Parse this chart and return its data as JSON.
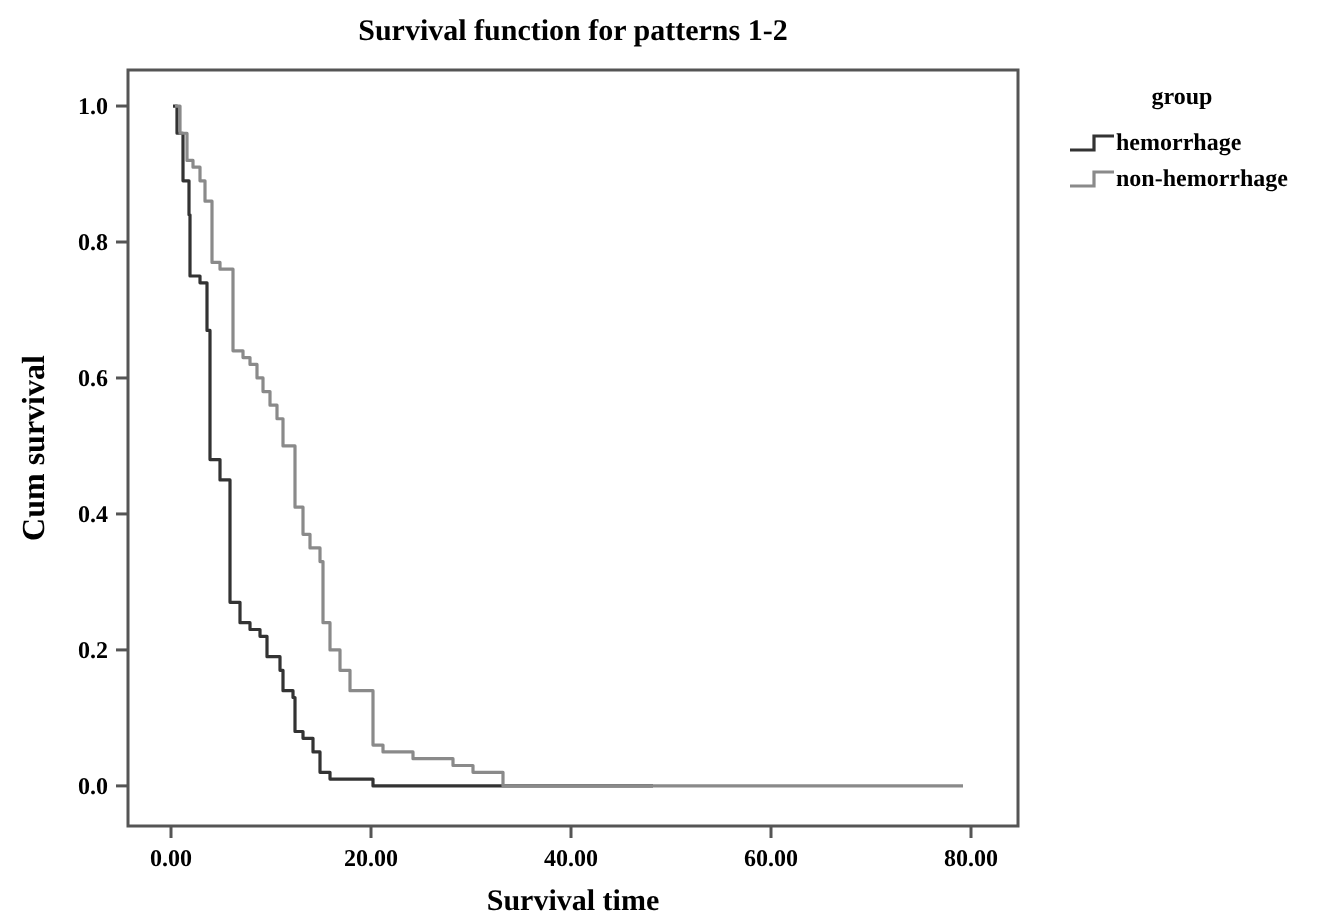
{
  "chart_data": {
    "type": "step",
    "title": "Survival function for patterns 1-2",
    "xlabel": "Survival time",
    "ylabel": "Cum survival",
    "legend_title": "group",
    "legend": "top right",
    "grid": false,
    "marker": "none",
    "line_style": "solid",
    "xlim": [
      -4.3,
      84.7
    ],
    "ylim": [
      -0.059,
      1.053
    ],
    "xticks": [
      {
        "value": 0,
        "label": "0.00"
      },
      {
        "value": 20,
        "label": "20.00"
      },
      {
        "value": 40,
        "label": "40.00"
      },
      {
        "value": 60,
        "label": "60.00"
      },
      {
        "value": 80,
        "label": "80.00"
      }
    ],
    "yticks": [
      {
        "value": 0,
        "label": "0.0"
      },
      {
        "value": 0.2,
        "label": "0.2"
      },
      {
        "value": 0.4,
        "label": "0.4"
      },
      {
        "value": 0.6,
        "label": "0.6"
      },
      {
        "value": 0.8,
        "label": "0.8"
      },
      {
        "value": 1,
        "label": "1.0"
      }
    ],
    "series": [
      {
        "name": "hemorrhage",
        "color": "#333333",
        "x": [
          0.2,
          0.6,
          1.2,
          1.8,
          1.9,
          2.9,
          3.6,
          3.9,
          4.9,
          5.9,
          6.9,
          7.9,
          8.9,
          9.6,
          10.9,
          11.2,
          12.2,
          12.4,
          13.2,
          14.2,
          14.9,
          15.9,
          17.6,
          20.2,
          48.2
        ],
        "values": [
          1.0,
          0.96,
          0.89,
          0.84,
          0.75,
          0.74,
          0.67,
          0.48,
          0.45,
          0.27,
          0.24,
          0.23,
          0.22,
          0.19,
          0.17,
          0.14,
          0.13,
          0.08,
          0.07,
          0.05,
          0.02,
          0.01,
          0.01,
          0,
          0
        ]
      },
      {
        "name": "non-hemorrhage",
        "color": "#8a8a8a",
        "x": [
          0.4,
          0.9,
          1.6,
          2.2,
          2.9,
          3.4,
          4.1,
          4.9,
          6.2,
          7.2,
          7.9,
          8.6,
          9.2,
          9.9,
          10.6,
          11.2,
          12.4,
          13.2,
          13.9,
          14.9,
          15.2,
          15.9,
          16.9,
          17.9,
          20.2,
          21.2,
          22.2,
          24.2,
          28.2,
          30.2,
          33.2,
          79.2
        ],
        "values": [
          1.0,
          0.96,
          0.92,
          0.91,
          0.89,
          0.86,
          0.77,
          0.76,
          0.64,
          0.63,
          0.62,
          0.6,
          0.58,
          0.56,
          0.54,
          0.5,
          0.41,
          0.37,
          0.35,
          0.33,
          0.24,
          0.2,
          0.17,
          0.14,
          0.06,
          0.05,
          0.05,
          0.04,
          0.03,
          0.02,
          0,
          0
        ]
      }
    ]
  }
}
